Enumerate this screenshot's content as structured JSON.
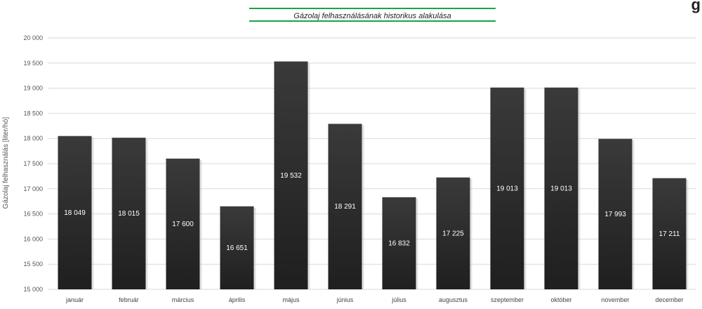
{
  "corner_text": "g",
  "chart_data": {
    "type": "bar",
    "title": "Gázolaj felhasználásának historikus alakulása",
    "xlabel": "",
    "ylabel": "Gázolaj felhasználás [liter/hó]",
    "ylim": [
      15000,
      20000
    ],
    "ytick_step": 500,
    "ytick_labels": [
      "15 000",
      "15 500",
      "16 000",
      "16 500",
      "17 000",
      "17 500",
      "18 000",
      "18 500",
      "19 000",
      "19 500",
      "20 000"
    ],
    "grid": true,
    "legend": "none",
    "bar_color": "#2e2e2e",
    "categories": [
      "január",
      "február",
      "március",
      "április",
      "május",
      "június",
      "július",
      "augusztus",
      "szeptember",
      "október",
      "november",
      "december"
    ],
    "values": [
      18049,
      18015,
      17600,
      16651,
      19532,
      18291,
      16832,
      17225,
      19013,
      19013,
      17993,
      17211
    ],
    "value_labels": [
      "18 049",
      "18 015",
      "17 600",
      "16 651",
      "19 532",
      "18 291",
      "16 832",
      "17 225",
      "19 013",
      "19 013",
      "17 993",
      "17 211"
    ]
  }
}
